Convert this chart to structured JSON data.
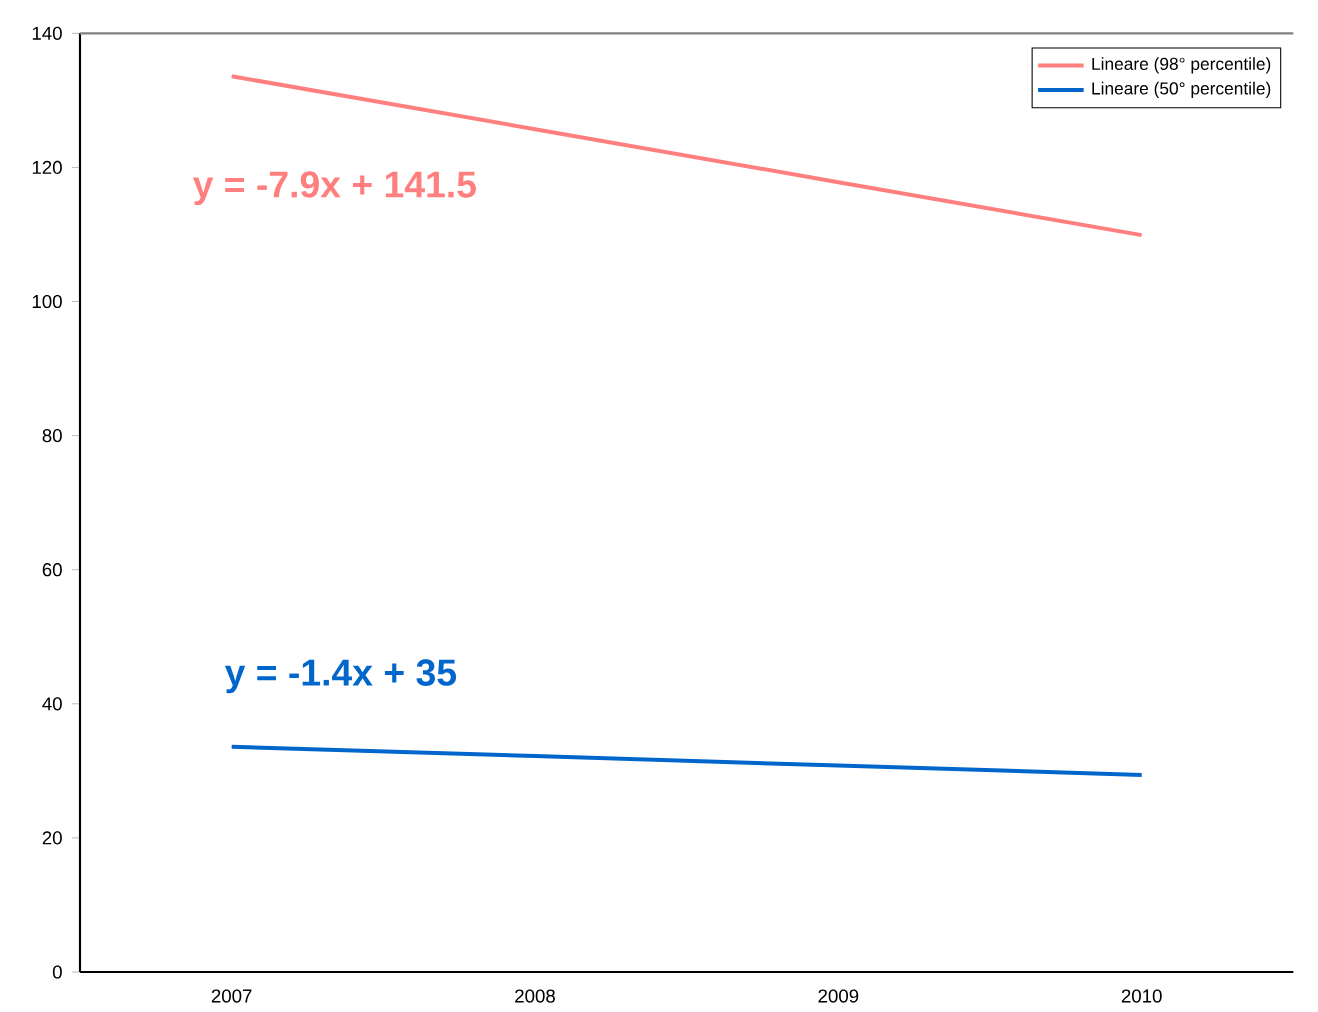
{
  "chart_data": {
    "type": "line",
    "categories": [
      "2007",
      "2008",
      "2009",
      "2010"
    ],
    "series": [
      {
        "name": "Lineare (98° percentile)",
        "color": "#ff7f7f",
        "values": [
          133.6,
          125.7,
          117.8,
          109.9
        ]
      },
      {
        "name": "Lineare (50° percentile)",
        "color": "#0066cc",
        "values": [
          33.6,
          32.2,
          30.8,
          29.4
        ]
      }
    ],
    "annotations": [
      "y = -7.9x + 141.5",
      "y = -1.4x + 35"
    ],
    "ylim": [
      0,
      140
    ],
    "yticks": [
      0,
      20,
      40,
      60,
      80,
      100,
      120,
      140
    ],
    "legend": "top right",
    "marker": "none",
    "line_style": "solid"
  }
}
